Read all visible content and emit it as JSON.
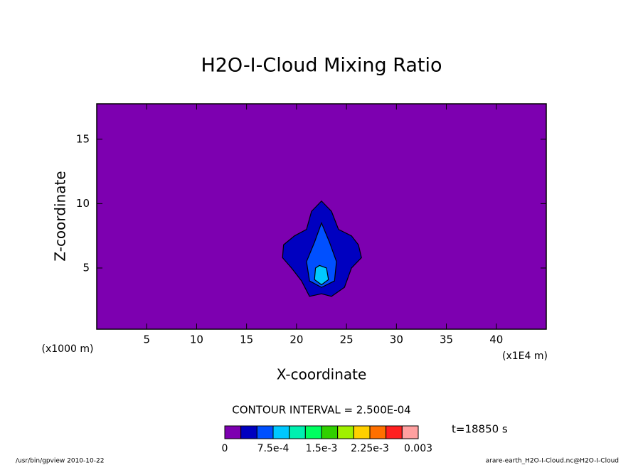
{
  "chart_data": {
    "type": "contour",
    "title": "H2O-I-Cloud Mixing Ratio",
    "x_label": "X-coordinate",
    "y_label": "Z-coordinate",
    "x_unit": "(x1E4 m)",
    "y_unit": "(x1000 m)",
    "xlim": [
      0,
      45
    ],
    "xticks": [
      5,
      10,
      15,
      20,
      25,
      30,
      35,
      40
    ],
    "ylim": [
      0.25,
      17.75
    ],
    "yticks": [
      5,
      10,
      15
    ],
    "background_level": 0,
    "levels": [
      0,
      0.00025,
      0.0005
    ],
    "regions": [
      {
        "level": 1,
        "points": [
          [
            22.5,
            10.2
          ],
          [
            23.5,
            9.4
          ],
          [
            24.2,
            8
          ],
          [
            25.5,
            7.5
          ],
          [
            26.2,
            6.8
          ],
          [
            26.5,
            5.8
          ],
          [
            25.5,
            5
          ],
          [
            24.8,
            3.5
          ],
          [
            23.5,
            2.8
          ],
          [
            22.5,
            3
          ],
          [
            21.3,
            2.8
          ],
          [
            20.5,
            4
          ],
          [
            19.5,
            5
          ],
          [
            18.6,
            5.8
          ],
          [
            18.7,
            6.8
          ],
          [
            19.8,
            7.5
          ],
          [
            21,
            8
          ],
          [
            21.5,
            9.4
          ]
        ]
      },
      {
        "level": 2,
        "points": [
          [
            22.5,
            8.5
          ],
          [
            23.3,
            7
          ],
          [
            24,
            5.5
          ],
          [
            23.8,
            4
          ],
          [
            22.5,
            3.5
          ],
          [
            21.3,
            4
          ],
          [
            21,
            5.5
          ],
          [
            21.8,
            7
          ]
        ]
      },
      {
        "level": 3,
        "points": [
          [
            22.3,
            5.2
          ],
          [
            23,
            5
          ],
          [
            23.2,
            4.1
          ],
          [
            22.5,
            3.7
          ],
          [
            21.8,
            4.1
          ],
          [
            21.9,
            5
          ]
        ]
      }
    ],
    "colorbar": {
      "lim": [
        0,
        0.003
      ],
      "colors": [
        "#7d00b0",
        "#0000c0",
        "#0050ff",
        "#00c8ff",
        "#00f0b0",
        "#00ff60",
        "#30d000",
        "#a0f000",
        "#ffd000",
        "#ff7000",
        "#ff2020",
        "#ffa0a0"
      ],
      "ticks": [
        0,
        {
          "value": 0.00075,
          "label": "7.5e-4"
        },
        {
          "value": 0.0015,
          "label": "1.5e-3"
        },
        {
          "value": 0.00225,
          "label": "2.25e-3"
        },
        0.003
      ]
    },
    "contour_interval": "CONTOUR INTERVAL = 2.500E-04",
    "time_label": "t=18850 s",
    "footer_left": "/usr/bin/gpview  2010-10-22",
    "footer_right": "arare-earth_H2O-I-Cloud.nc@H2O-I-Cloud"
  }
}
